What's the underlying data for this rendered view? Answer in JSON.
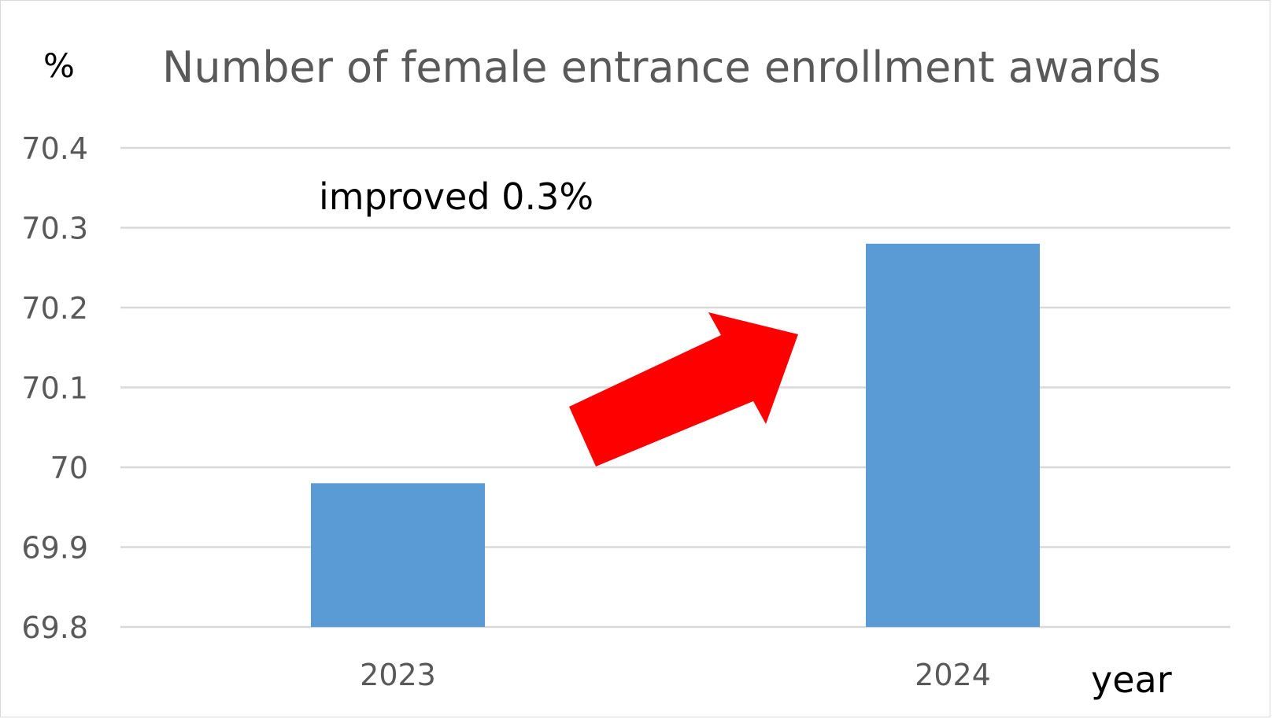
{
  "chart_data": {
    "type": "bar",
    "title": "Number of female entrance enrollment awards",
    "ylabel": "%",
    "xlabel": "year",
    "categories": [
      "2023",
      "2024"
    ],
    "values": [
      69.98,
      70.28
    ],
    "ylim": [
      69.8,
      70.4
    ],
    "yticks": [
      "69.8",
      "69.9",
      "70",
      "70.1",
      "70.2",
      "70.3",
      "70.4"
    ],
    "bar_color": "#5b9bd5",
    "grid": true,
    "legend": "none",
    "annotation": {
      "text": "improved 0.3%",
      "arrow_color": "#ff0000"
    }
  }
}
